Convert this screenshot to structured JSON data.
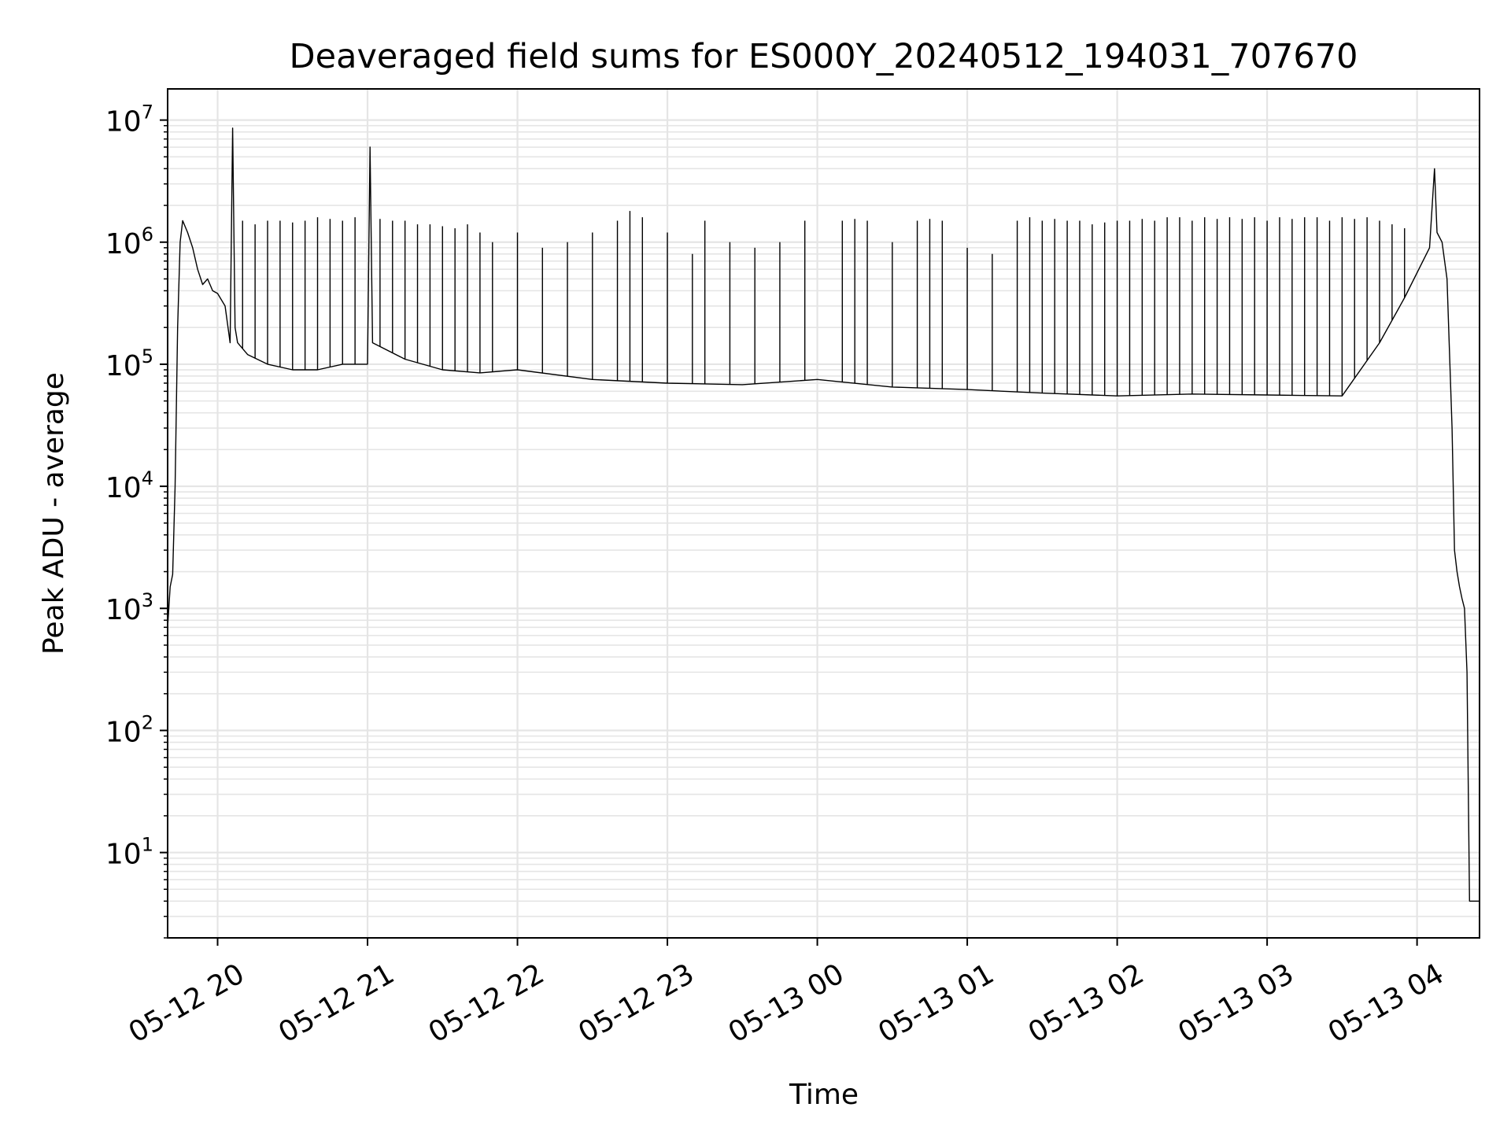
{
  "chart_data": {
    "type": "line",
    "title": "Deaveraged field sums for ES000Y_20240512_194031_707670",
    "xlabel": "Time",
    "ylabel": "Peak ADU - average",
    "yscale": "log",
    "ylim": [
      2.0,
      18000000
    ],
    "xlim": [
      "2024-05-12 19:40",
      "2024-05-13 04:25"
    ],
    "grid": true,
    "line_color": "#000000",
    "grid_color": "#e5e5e5",
    "x_ticks": [
      {
        "value": "2024-05-12 20:00",
        "label": "05-12 20"
      },
      {
        "value": "2024-05-12 21:00",
        "label": "05-12 21"
      },
      {
        "value": "2024-05-12 22:00",
        "label": "05-12 22"
      },
      {
        "value": "2024-05-12 23:00",
        "label": "05-12 23"
      },
      {
        "value": "2024-05-13 00:00",
        "label": "05-13 00"
      },
      {
        "value": "2024-05-13 01:00",
        "label": "05-13 01"
      },
      {
        "value": "2024-05-13 02:00",
        "label": "05-13 02"
      },
      {
        "value": "2024-05-13 03:00",
        "label": "05-13 03"
      },
      {
        "value": "2024-05-13 04:00",
        "label": "05-13 04"
      }
    ],
    "y_ticks": [
      {
        "value": 10,
        "base": "10",
        "exp": "1"
      },
      {
        "value": 100,
        "base": "10",
        "exp": "2"
      },
      {
        "value": 1000,
        "base": "10",
        "exp": "3"
      },
      {
        "value": 10000,
        "base": "10",
        "exp": "4"
      },
      {
        "value": 100000,
        "base": "10",
        "exp": "5"
      },
      {
        "value": 1000000,
        "base": "10",
        "exp": "6"
      },
      {
        "value": 10000000,
        "base": "10",
        "exp": "7"
      }
    ],
    "series": [
      {
        "x": [
          "2024-05-12 19:40",
          "2024-05-12 19:41",
          "2024-05-12 19:42",
          "2024-05-12 19:43",
          "2024-05-12 19:44",
          "2024-05-12 19:45",
          "2024-05-12 19:46",
          "2024-05-12 19:48",
          "2024-05-12 19:50",
          "2024-05-12 19:52",
          "2024-05-12 19:54",
          "2024-05-12 19:56",
          "2024-05-12 19:58",
          "2024-05-12 20:00",
          "2024-05-12 20:03",
          "2024-05-12 20:05",
          "2024-05-12 20:06",
          "2024-05-12 20:07",
          "2024-05-12 20:08",
          "2024-05-12 20:12",
          "2024-05-12 20:20",
          "2024-05-12 20:30",
          "2024-05-12 20:40",
          "2024-05-12 20:50",
          "2024-05-12 21:00",
          "2024-05-12 21:01",
          "2024-05-12 21:02",
          "2024-05-12 21:15",
          "2024-05-12 21:30",
          "2024-05-12 21:45",
          "2024-05-12 22:00",
          "2024-05-12 22:30",
          "2024-05-12 23:00",
          "2024-05-12 23:30",
          "2024-05-13 00:00",
          "2024-05-13 00:30",
          "2024-05-13 01:00",
          "2024-05-13 01:30",
          "2024-05-13 02:00",
          "2024-05-13 02:30",
          "2024-05-13 03:00",
          "2024-05-13 03:30",
          "2024-05-13 03:45",
          "2024-05-13 03:55",
          "2024-05-13 04:05",
          "2024-05-13 04:07",
          "2024-05-13 04:08",
          "2024-05-13 04:10",
          "2024-05-13 04:12",
          "2024-05-13 04:14",
          "2024-05-13 04:15",
          "2024-05-13 04:16",
          "2024-05-13 04:17",
          "2024-05-13 04:18",
          "2024-05-13 04:19",
          "2024-05-13 04:20",
          "2024-05-13 04:21",
          "2024-05-13 04:22",
          "2024-05-13 04:25"
        ],
        "y": [
          700,
          1500,
          1900,
          10000,
          200000,
          1000000,
          1500000,
          1200000,
          900000,
          600000,
          450000,
          500000,
          400000,
          380000,
          300000,
          150000,
          8600000,
          200000,
          150000,
          120000,
          100000,
          90000,
          90000,
          100000,
          100000,
          6000000,
          150000,
          110000,
          90000,
          85000,
          90000,
          75000,
          70000,
          68000,
          75000,
          65000,
          62000,
          58000,
          55000,
          57000,
          56000,
          55000,
          150000,
          350000,
          900000,
          4000000,
          1200000,
          1000000,
          500000,
          30000,
          3000,
          2000,
          1500,
          1200,
          1000,
          300,
          4,
          4,
          4
        ]
      }
    ],
    "spikes": [
      {
        "x": "2024-05-12 20:10",
        "y": 1500000
      },
      {
        "x": "2024-05-12 20:15",
        "y": 1400000
      },
      {
        "x": "2024-05-12 20:20",
        "y": 1500000
      },
      {
        "x": "2024-05-12 20:25",
        "y": 1500000
      },
      {
        "x": "2024-05-12 20:30",
        "y": 1450000
      },
      {
        "x": "2024-05-12 20:35",
        "y": 1500000
      },
      {
        "x": "2024-05-12 20:40",
        "y": 1600000
      },
      {
        "x": "2024-05-12 20:45",
        "y": 1550000
      },
      {
        "x": "2024-05-12 20:50",
        "y": 1500000
      },
      {
        "x": "2024-05-12 20:55",
        "y": 1600000
      },
      {
        "x": "2024-05-12 21:05",
        "y": 1550000
      },
      {
        "x": "2024-05-12 21:10",
        "y": 1500000
      },
      {
        "x": "2024-05-12 21:15",
        "y": 1500000
      },
      {
        "x": "2024-05-12 21:20",
        "y": 1400000
      },
      {
        "x": "2024-05-12 21:25",
        "y": 1400000
      },
      {
        "x": "2024-05-12 21:30",
        "y": 1350000
      },
      {
        "x": "2024-05-12 21:35",
        "y": 1300000
      },
      {
        "x": "2024-05-12 21:40",
        "y": 1400000
      },
      {
        "x": "2024-05-12 21:45",
        "y": 1200000
      },
      {
        "x": "2024-05-12 21:50",
        "y": 1000000
      },
      {
        "x": "2024-05-12 22:00",
        "y": 1200000
      },
      {
        "x": "2024-05-12 22:10",
        "y": 900000
      },
      {
        "x": "2024-05-12 22:20",
        "y": 1000000
      },
      {
        "x": "2024-05-12 22:30",
        "y": 1200000
      },
      {
        "x": "2024-05-12 22:40",
        "y": 1500000
      },
      {
        "x": "2024-05-12 22:45",
        "y": 1800000
      },
      {
        "x": "2024-05-12 22:50",
        "y": 1600000
      },
      {
        "x": "2024-05-12 23:00",
        "y": 1200000
      },
      {
        "x": "2024-05-12 23:10",
        "y": 800000
      },
      {
        "x": "2024-05-12 23:15",
        "y": 1500000
      },
      {
        "x": "2024-05-12 23:25",
        "y": 1000000
      },
      {
        "x": "2024-05-12 23:35",
        "y": 900000
      },
      {
        "x": "2024-05-12 23:45",
        "y": 1000000
      },
      {
        "x": "2024-05-12 23:55",
        "y": 1500000
      },
      {
        "x": "2024-05-13 00:10",
        "y": 1500000
      },
      {
        "x": "2024-05-13 00:15",
        "y": 1550000
      },
      {
        "x": "2024-05-13 00:20",
        "y": 1500000
      },
      {
        "x": "2024-05-13 00:30",
        "y": 1000000
      },
      {
        "x": "2024-05-13 00:40",
        "y": 1500000
      },
      {
        "x": "2024-05-13 00:45",
        "y": 1550000
      },
      {
        "x": "2024-05-13 00:50",
        "y": 1500000
      },
      {
        "x": "2024-05-13 01:00",
        "y": 900000
      },
      {
        "x": "2024-05-13 01:10",
        "y": 800000
      },
      {
        "x": "2024-05-13 01:20",
        "y": 1500000
      },
      {
        "x": "2024-05-13 01:25",
        "y": 1600000
      },
      {
        "x": "2024-05-13 01:30",
        "y": 1500000
      },
      {
        "x": "2024-05-13 01:35",
        "y": 1550000
      },
      {
        "x": "2024-05-13 01:40",
        "y": 1500000
      },
      {
        "x": "2024-05-13 01:45",
        "y": 1500000
      },
      {
        "x": "2024-05-13 01:50",
        "y": 1400000
      },
      {
        "x": "2024-05-13 01:55",
        "y": 1450000
      },
      {
        "x": "2024-05-13 02:00",
        "y": 1500000
      },
      {
        "x": "2024-05-13 02:05",
        "y": 1500000
      },
      {
        "x": "2024-05-13 02:10",
        "y": 1550000
      },
      {
        "x": "2024-05-13 02:15",
        "y": 1500000
      },
      {
        "x": "2024-05-13 02:20",
        "y": 1600000
      },
      {
        "x": "2024-05-13 02:25",
        "y": 1600000
      },
      {
        "x": "2024-05-13 02:30",
        "y": 1500000
      },
      {
        "x": "2024-05-13 02:35",
        "y": 1600000
      },
      {
        "x": "2024-05-13 02:40",
        "y": 1550000
      },
      {
        "x": "2024-05-13 02:45",
        "y": 1600000
      },
      {
        "x": "2024-05-13 02:50",
        "y": 1550000
      },
      {
        "x": "2024-05-13 02:55",
        "y": 1600000
      },
      {
        "x": "2024-05-13 03:00",
        "y": 1500000
      },
      {
        "x": "2024-05-13 03:05",
        "y": 1600000
      },
      {
        "x": "2024-05-13 03:10",
        "y": 1550000
      },
      {
        "x": "2024-05-13 03:15",
        "y": 1600000
      },
      {
        "x": "2024-05-13 03:20",
        "y": 1600000
      },
      {
        "x": "2024-05-13 03:25",
        "y": 1500000
      },
      {
        "x": "2024-05-13 03:30",
        "y": 1600000
      },
      {
        "x": "2024-05-13 03:35",
        "y": 1550000
      },
      {
        "x": "2024-05-13 03:40",
        "y": 1600000
      },
      {
        "x": "2024-05-13 03:45",
        "y": 1500000
      },
      {
        "x": "2024-05-13 03:50",
        "y": 1400000
      },
      {
        "x": "2024-05-13 03:55",
        "y": 1300000
      }
    ]
  }
}
